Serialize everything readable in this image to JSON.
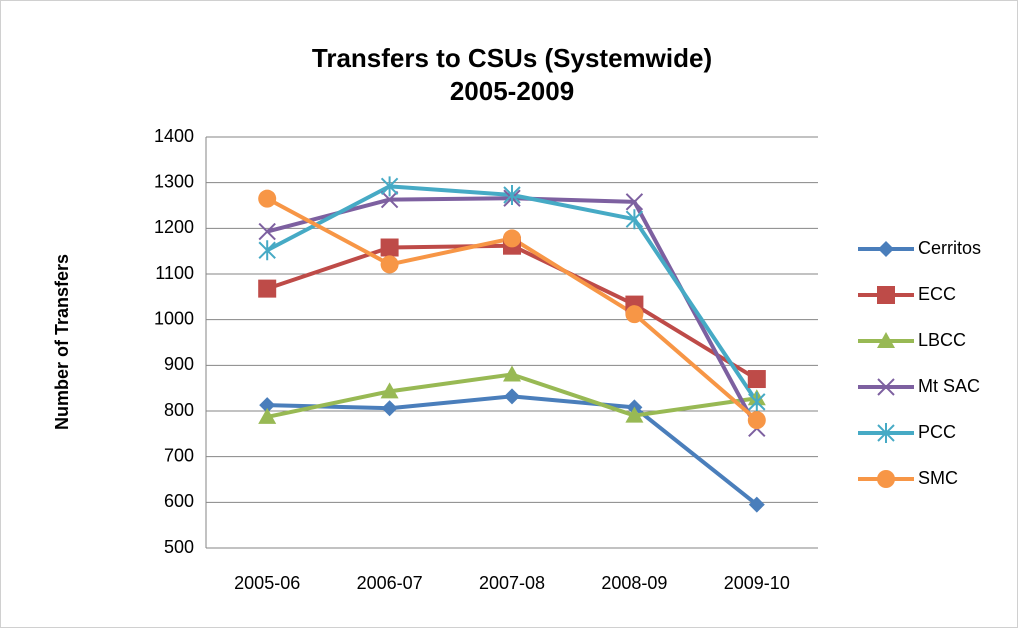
{
  "chart_data": {
    "type": "line",
    "title": "Transfers to CSUs (Systemwide)",
    "subtitle": "2005-2009",
    "y_label": "Number of Transfers",
    "categories": [
      "2005-06",
      "2006-07",
      "2007-08",
      "2008-09",
      "2009-10"
    ],
    "series": [
      {
        "name": "Cerritos",
        "color": "#4a7ebb",
        "marker": "diamond",
        "values": [
          813,
          806,
          832,
          808,
          595
        ]
      },
      {
        "name": "ECC",
        "color": "#be4b48",
        "marker": "square",
        "values": [
          1068,
          1158,
          1162,
          1033,
          870
        ]
      },
      {
        "name": "LBCC",
        "color": "#98b954",
        "marker": "triangle",
        "values": [
          787,
          843,
          880,
          790,
          828
        ]
      },
      {
        "name": "Mt SAC",
        "color": "#7d60a0",
        "marker": "x",
        "values": [
          1193,
          1263,
          1266,
          1258,
          762
        ]
      },
      {
        "name": "PCC",
        "color": "#46aac5",
        "marker": "star",
        "values": [
          1152,
          1292,
          1273,
          1220,
          820
        ]
      },
      {
        "name": "SMC",
        "color": "#f79646",
        "marker": "circle",
        "values": [
          1265,
          1121,
          1178,
          1012,
          780
        ]
      }
    ],
    "ylim": [
      500,
      1400
    ],
    "yticks": [
      500,
      600,
      700,
      800,
      900,
      1000,
      1100,
      1200,
      1300,
      1400
    ],
    "grid": true,
    "legend": "right"
  }
}
